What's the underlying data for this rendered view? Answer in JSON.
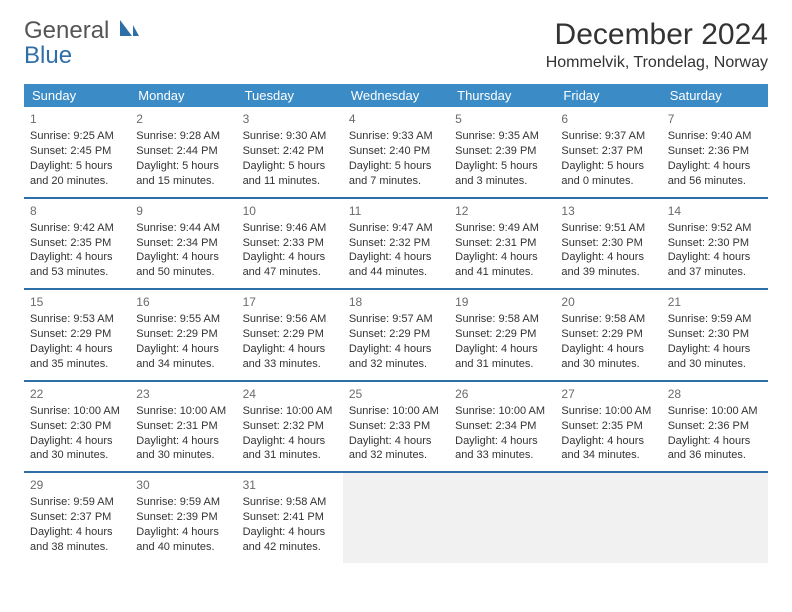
{
  "logo": {
    "line1": "General",
    "line2": "Blue"
  },
  "title": "December 2024",
  "location": "Hommelvik, Trondelag, Norway",
  "colors": {
    "header_bg": "#3b8bc6",
    "header_text": "#ffffff",
    "row_border": "#2f6fa8",
    "logo_gray": "#555555",
    "logo_blue": "#2f6fa8",
    "empty_bg": "#f1f1f1"
  },
  "weekdays": [
    "Sunday",
    "Monday",
    "Tuesday",
    "Wednesday",
    "Thursday",
    "Friday",
    "Saturday"
  ],
  "weeks": [
    [
      {
        "n": "1",
        "sr": "Sunrise: 9:25 AM",
        "ss": "Sunset: 2:45 PM",
        "d1": "Daylight: 5 hours",
        "d2": "and 20 minutes."
      },
      {
        "n": "2",
        "sr": "Sunrise: 9:28 AM",
        "ss": "Sunset: 2:44 PM",
        "d1": "Daylight: 5 hours",
        "d2": "and 15 minutes."
      },
      {
        "n": "3",
        "sr": "Sunrise: 9:30 AM",
        "ss": "Sunset: 2:42 PM",
        "d1": "Daylight: 5 hours",
        "d2": "and 11 minutes."
      },
      {
        "n": "4",
        "sr": "Sunrise: 9:33 AM",
        "ss": "Sunset: 2:40 PM",
        "d1": "Daylight: 5 hours",
        "d2": "and 7 minutes."
      },
      {
        "n": "5",
        "sr": "Sunrise: 9:35 AM",
        "ss": "Sunset: 2:39 PM",
        "d1": "Daylight: 5 hours",
        "d2": "and 3 minutes."
      },
      {
        "n": "6",
        "sr": "Sunrise: 9:37 AM",
        "ss": "Sunset: 2:37 PM",
        "d1": "Daylight: 5 hours",
        "d2": "and 0 minutes."
      },
      {
        "n": "7",
        "sr": "Sunrise: 9:40 AM",
        "ss": "Sunset: 2:36 PM",
        "d1": "Daylight: 4 hours",
        "d2": "and 56 minutes."
      }
    ],
    [
      {
        "n": "8",
        "sr": "Sunrise: 9:42 AM",
        "ss": "Sunset: 2:35 PM",
        "d1": "Daylight: 4 hours",
        "d2": "and 53 minutes."
      },
      {
        "n": "9",
        "sr": "Sunrise: 9:44 AM",
        "ss": "Sunset: 2:34 PM",
        "d1": "Daylight: 4 hours",
        "d2": "and 50 minutes."
      },
      {
        "n": "10",
        "sr": "Sunrise: 9:46 AM",
        "ss": "Sunset: 2:33 PM",
        "d1": "Daylight: 4 hours",
        "d2": "and 47 minutes."
      },
      {
        "n": "11",
        "sr": "Sunrise: 9:47 AM",
        "ss": "Sunset: 2:32 PM",
        "d1": "Daylight: 4 hours",
        "d2": "and 44 minutes."
      },
      {
        "n": "12",
        "sr": "Sunrise: 9:49 AM",
        "ss": "Sunset: 2:31 PM",
        "d1": "Daylight: 4 hours",
        "d2": "and 41 minutes."
      },
      {
        "n": "13",
        "sr": "Sunrise: 9:51 AM",
        "ss": "Sunset: 2:30 PM",
        "d1": "Daylight: 4 hours",
        "d2": "and 39 minutes."
      },
      {
        "n": "14",
        "sr": "Sunrise: 9:52 AM",
        "ss": "Sunset: 2:30 PM",
        "d1": "Daylight: 4 hours",
        "d2": "and 37 minutes."
      }
    ],
    [
      {
        "n": "15",
        "sr": "Sunrise: 9:53 AM",
        "ss": "Sunset: 2:29 PM",
        "d1": "Daylight: 4 hours",
        "d2": "and 35 minutes."
      },
      {
        "n": "16",
        "sr": "Sunrise: 9:55 AM",
        "ss": "Sunset: 2:29 PM",
        "d1": "Daylight: 4 hours",
        "d2": "and 34 minutes."
      },
      {
        "n": "17",
        "sr": "Sunrise: 9:56 AM",
        "ss": "Sunset: 2:29 PM",
        "d1": "Daylight: 4 hours",
        "d2": "and 33 minutes."
      },
      {
        "n": "18",
        "sr": "Sunrise: 9:57 AM",
        "ss": "Sunset: 2:29 PM",
        "d1": "Daylight: 4 hours",
        "d2": "and 32 minutes."
      },
      {
        "n": "19",
        "sr": "Sunrise: 9:58 AM",
        "ss": "Sunset: 2:29 PM",
        "d1": "Daylight: 4 hours",
        "d2": "and 31 minutes."
      },
      {
        "n": "20",
        "sr": "Sunrise: 9:58 AM",
        "ss": "Sunset: 2:29 PM",
        "d1": "Daylight: 4 hours",
        "d2": "and 30 minutes."
      },
      {
        "n": "21",
        "sr": "Sunrise: 9:59 AM",
        "ss": "Sunset: 2:30 PM",
        "d1": "Daylight: 4 hours",
        "d2": "and 30 minutes."
      }
    ],
    [
      {
        "n": "22",
        "sr": "Sunrise: 10:00 AM",
        "ss": "Sunset: 2:30 PM",
        "d1": "Daylight: 4 hours",
        "d2": "and 30 minutes."
      },
      {
        "n": "23",
        "sr": "Sunrise: 10:00 AM",
        "ss": "Sunset: 2:31 PM",
        "d1": "Daylight: 4 hours",
        "d2": "and 30 minutes."
      },
      {
        "n": "24",
        "sr": "Sunrise: 10:00 AM",
        "ss": "Sunset: 2:32 PM",
        "d1": "Daylight: 4 hours",
        "d2": "and 31 minutes."
      },
      {
        "n": "25",
        "sr": "Sunrise: 10:00 AM",
        "ss": "Sunset: 2:33 PM",
        "d1": "Daylight: 4 hours",
        "d2": "and 32 minutes."
      },
      {
        "n": "26",
        "sr": "Sunrise: 10:00 AM",
        "ss": "Sunset: 2:34 PM",
        "d1": "Daylight: 4 hours",
        "d2": "and 33 minutes."
      },
      {
        "n": "27",
        "sr": "Sunrise: 10:00 AM",
        "ss": "Sunset: 2:35 PM",
        "d1": "Daylight: 4 hours",
        "d2": "and 34 minutes."
      },
      {
        "n": "28",
        "sr": "Sunrise: 10:00 AM",
        "ss": "Sunset: 2:36 PM",
        "d1": "Daylight: 4 hours",
        "d2": "and 36 minutes."
      }
    ],
    [
      {
        "n": "29",
        "sr": "Sunrise: 9:59 AM",
        "ss": "Sunset: 2:37 PM",
        "d1": "Daylight: 4 hours",
        "d2": "and 38 minutes."
      },
      {
        "n": "30",
        "sr": "Sunrise: 9:59 AM",
        "ss": "Sunset: 2:39 PM",
        "d1": "Daylight: 4 hours",
        "d2": "and 40 minutes."
      },
      {
        "n": "31",
        "sr": "Sunrise: 9:58 AM",
        "ss": "Sunset: 2:41 PM",
        "d1": "Daylight: 4 hours",
        "d2": "and 42 minutes."
      },
      {
        "empty": true
      },
      {
        "empty": true
      },
      {
        "empty": true
      },
      {
        "empty": true
      }
    ]
  ]
}
